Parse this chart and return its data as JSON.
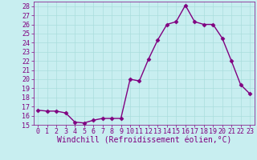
{
  "x": [
    0,
    1,
    2,
    3,
    4,
    5,
    6,
    7,
    8,
    9,
    10,
    11,
    12,
    13,
    14,
    15,
    16,
    17,
    18,
    19,
    20,
    21,
    22,
    23
  ],
  "y": [
    16.6,
    16.5,
    16.5,
    16.3,
    15.3,
    15.2,
    15.5,
    15.7,
    15.7,
    15.7,
    20.0,
    19.8,
    22.2,
    24.3,
    26.0,
    26.3,
    28.1,
    26.3,
    26.0,
    26.0,
    24.5,
    22.0,
    19.4,
    18.4
  ],
  "line_color": "#800080",
  "marker": "D",
  "marker_size": 2.5,
  "bg_color": "#c8eef0",
  "grid_color": "#aadddd",
  "xlabel": "Windchill (Refroidissement éolien,°C)",
  "xlim_min": -0.5,
  "xlim_max": 23.5,
  "ylim_min": 15,
  "ylim_max": 28.5,
  "yticks": [
    15,
    16,
    17,
    18,
    19,
    20,
    21,
    22,
    23,
    24,
    25,
    26,
    27,
    28
  ],
  "xticks": [
    0,
    1,
    2,
    3,
    4,
    5,
    6,
    7,
    8,
    9,
    10,
    11,
    12,
    13,
    14,
    15,
    16,
    17,
    18,
    19,
    20,
    21,
    22,
    23
  ],
  "font_color": "#800080",
  "label_fontsize": 7.0,
  "tick_fontsize": 6.0,
  "linewidth": 1.0
}
